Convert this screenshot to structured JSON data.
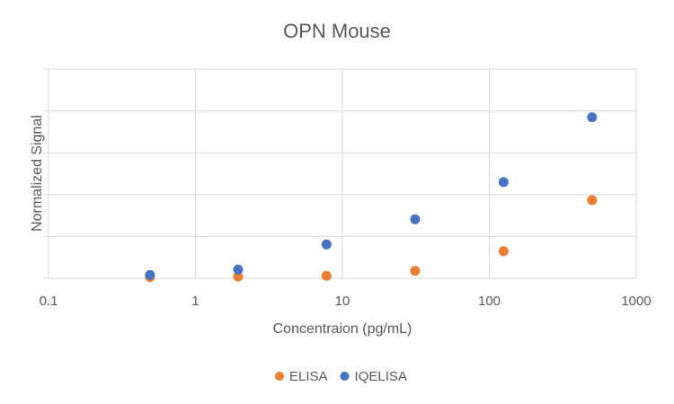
{
  "chart_data": {
    "type": "scatter",
    "title": "OPN Mouse",
    "xlabel": "Concentraion (pg/mL)",
    "ylabel": "Normalized Signal",
    "x_scale": "log",
    "xlim": [
      0.1,
      1000
    ],
    "x_ticks": [
      "0.1",
      "1",
      "10",
      "100",
      "1000"
    ],
    "ylim": [
      0,
      5
    ],
    "y_ticks_labeled": false,
    "grid": true,
    "legend_position": "bottom",
    "series": [
      {
        "name": "ELISA",
        "color": "#ED7D31",
        "points": [
          {
            "x": 0.49,
            "y": 0.03
          },
          {
            "x": 1.95,
            "y": 0.04
          },
          {
            "x": 7.8,
            "y": 0.06
          },
          {
            "x": 31.25,
            "y": 0.18
          },
          {
            "x": 125,
            "y": 0.65
          },
          {
            "x": 500,
            "y": 1.87
          }
        ]
      },
      {
        "name": "IQELISA",
        "color": "#4472C4",
        "points": [
          {
            "x": 0.49,
            "y": 0.08
          },
          {
            "x": 1.95,
            "y": 0.21
          },
          {
            "x": 7.8,
            "y": 0.81
          },
          {
            "x": 31.25,
            "y": 1.41
          },
          {
            "x": 125,
            "y": 2.3
          },
          {
            "x": 500,
            "y": 3.85
          }
        ]
      }
    ]
  }
}
